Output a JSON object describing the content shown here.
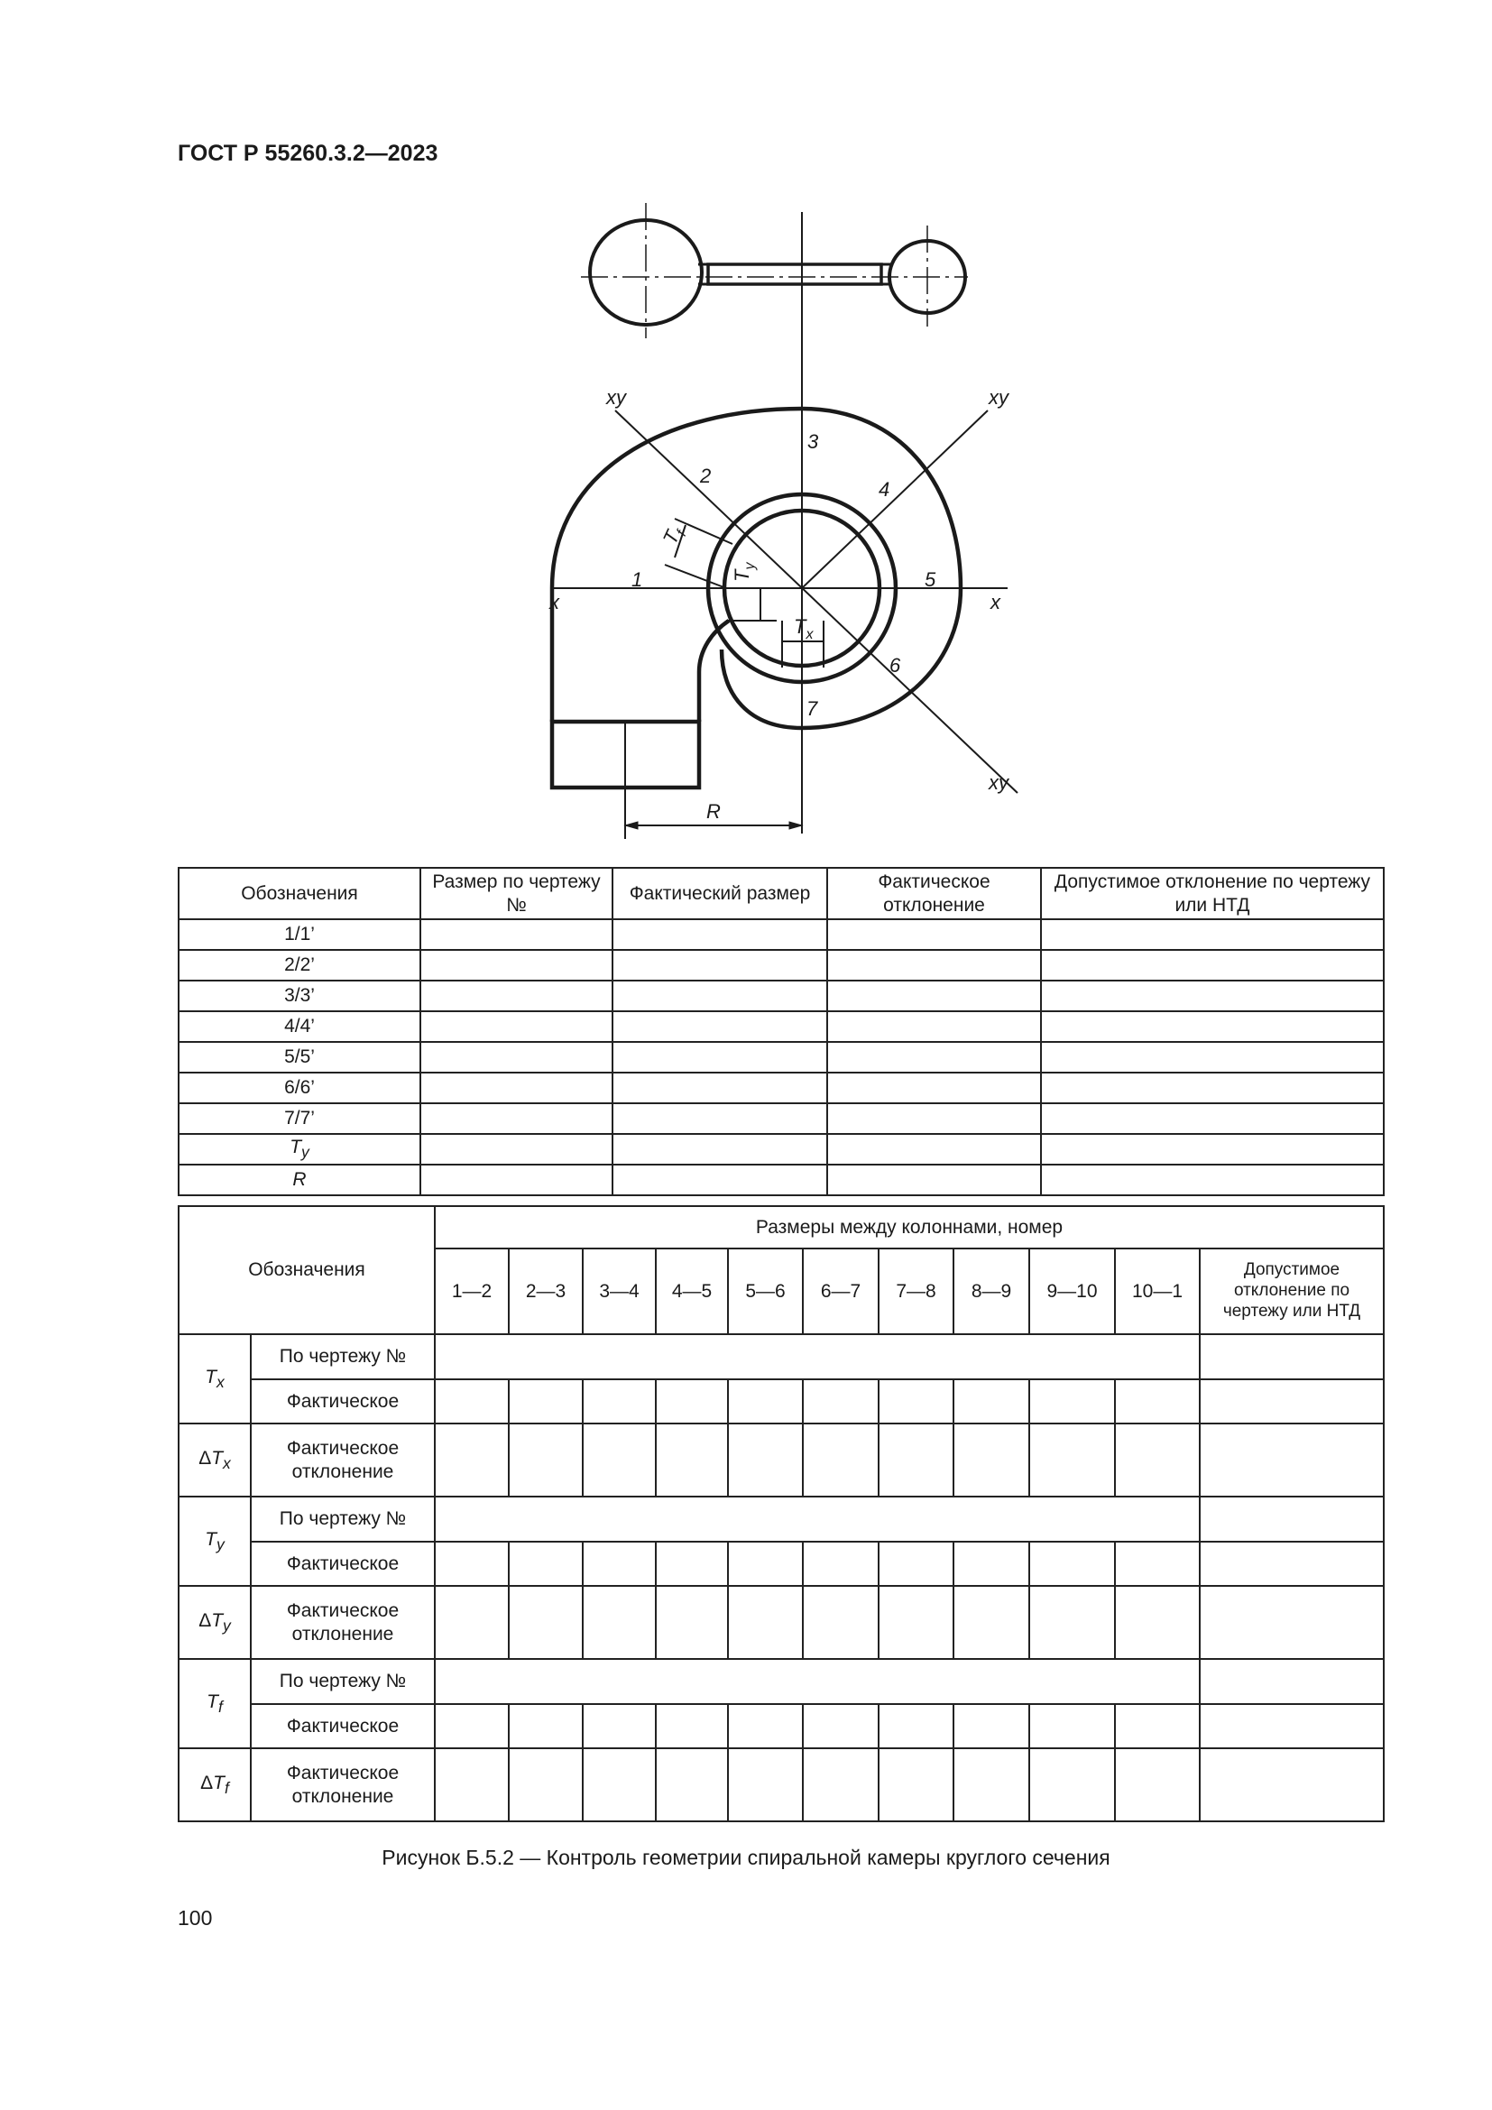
{
  "header": {
    "doc_code": "ГОСТ Р 55260.3.2—2023"
  },
  "figure": {
    "labels": {
      "p1": "1",
      "p2": "2",
      "p3": "3",
      "p4": "4",
      "p5": "5",
      "p6": "6",
      "p7": "7",
      "x": "x",
      "xy": "xy",
      "R": "R",
      "T": "T",
      "sub_x": "x",
      "sub_y": "y",
      "sub_f": "f"
    }
  },
  "table1": {
    "headers": [
      "Обозначения",
      "Размер по чертежу №",
      "Фактический размер",
      "Фактическое отклонение",
      "Допустимое отклонение по чертежу или НТД"
    ],
    "rows": [
      "1/1’",
      "2/2’",
      "3/3’",
      "4/4’",
      "5/5’",
      "6/6’",
      "7/7’",
      "T",
      "R"
    ],
    "ty_sub": "y"
  },
  "table2": {
    "designation": "Обозначения",
    "group_header": "Размеры между колоннами, номер",
    "columns": [
      "1—2",
      "2—3",
      "3—4",
      "4—5",
      "5—6",
      "6—7",
      "7—8",
      "8—9",
      "9—10",
      "10—1"
    ],
    "tolerance": "Допустимое отклонение по чертежу или НТД",
    "by_drawing": "По чертежу №",
    "actual": "Фактическое",
    "actual_dev": "Фактическое отклонение",
    "delta": "Δ",
    "sym": "T",
    "subs": [
      "x",
      "y",
      "f"
    ]
  },
  "caption": "Рисунок Б.5.2 — Контроль геометрии спиральной камеры круглого сечения",
  "page_number": "100"
}
